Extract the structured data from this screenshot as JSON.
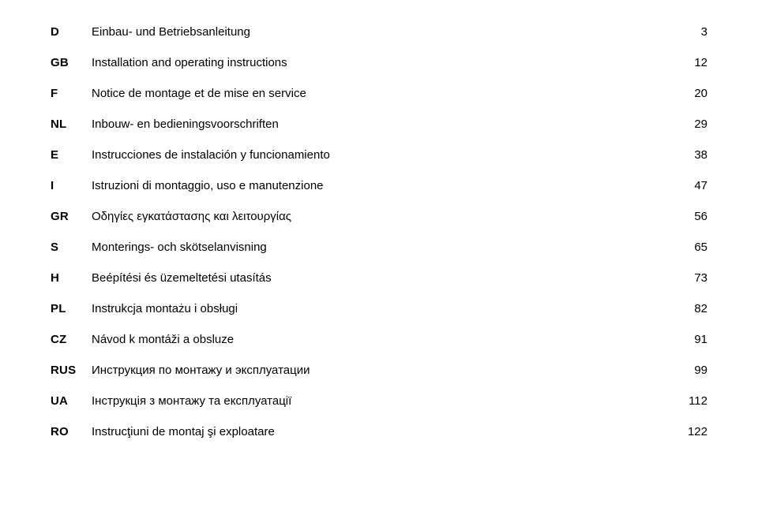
{
  "text_color": "#000000",
  "background_color": "#ffffff",
  "font_size_pt": 11,
  "label_font_weight": 700,
  "entries": [
    {
      "code": "D",
      "title": "Einbau- und Betriebsanleitung",
      "page": "3"
    },
    {
      "code": "GB",
      "title": "Installation and operating instructions",
      "page": "12"
    },
    {
      "code": "F",
      "title": "Notice de montage et de mise en service",
      "page": "20"
    },
    {
      "code": "NL",
      "title": "Inbouw- en bedieningsvoorschriften",
      "page": "29"
    },
    {
      "code": "E",
      "title": "Instrucciones de instalación y funcionamiento",
      "page": "38"
    },
    {
      "code": "I",
      "title": "Istruzioni di montaggio, uso e manutenzione",
      "page": "47"
    },
    {
      "code": "GR",
      "title": "Οδηγίες εγκατάστασης και λειτουργίας",
      "page": "56"
    },
    {
      "code": "S",
      "title": "Monterings- och skötselanvisning",
      "page": "65"
    },
    {
      "code": "H",
      "title": "Beépítési és üzemeltetési utasítás",
      "page": "73"
    },
    {
      "code": "PL",
      "title": "Instrukcja montażu i obsługi",
      "page": "82"
    },
    {
      "code": "CZ",
      "title": "Návod k montáži a obsluze",
      "page": "91"
    },
    {
      "code": "RUS",
      "title": "Инструкция по монтажу и эксплуатации",
      "page": "99"
    },
    {
      "code": "UA",
      "title": "Інструкція з монтажу та експлуатації",
      "page": "112"
    },
    {
      "code": "RO",
      "title": "Instrucţiuni de montaj şi exploatare",
      "page": "122"
    }
  ]
}
